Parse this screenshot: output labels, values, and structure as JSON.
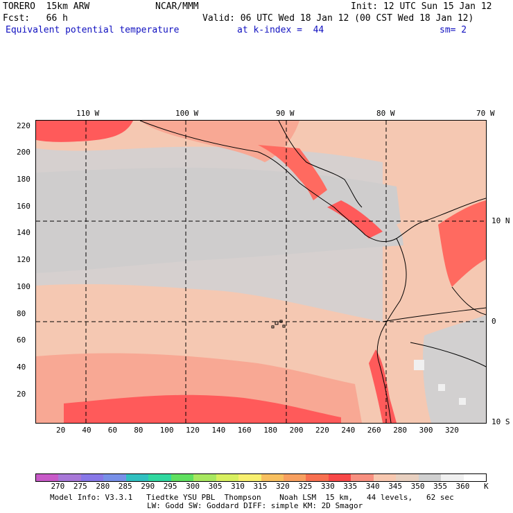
{
  "header": {
    "model": "TORERO  15km ARW",
    "org": "NCAR/MMM",
    "init": "Init: 12 UTC Sun 15 Jan 12",
    "fcst": "Fcst:   66 h",
    "valid": "Valid: 06 UTC Wed 18 Jan 12 (00 CST Wed 18 Jan 12)",
    "field": "Equivalent potential temperature",
    "level": "at k-index =  44",
    "smooth": "sm= 2"
  },
  "map": {
    "lon_labels": [
      "110 W",
      "100 W",
      "90 W",
      "80 W",
      "70 W"
    ],
    "lat_labels": [
      "10 N",
      "0",
      "10 S"
    ],
    "y_ticks": [
      "220",
      "200",
      "180",
      "160",
      "140",
      "120",
      "100",
      "80",
      "60",
      "40",
      "20"
    ],
    "x_ticks": [
      "20",
      "40",
      "60",
      "80",
      "100",
      "120",
      "140",
      "160",
      "180",
      "200",
      "220",
      "240",
      "260",
      "280",
      "300",
      "320"
    ],
    "colors": {
      "c330": "#ff5a5a",
      "c335": "#ff8a7a",
      "c340": "#f5c8b2",
      "c345": "#e8cfc0",
      "c350": "#d2d0d0",
      "c355": "#f0f0f0",
      "c325": "#f58a5a"
    }
  },
  "colorbar": {
    "labels": [
      "270",
      "275",
      "280",
      "285",
      "290",
      "295",
      "300",
      "305",
      "310",
      "315",
      "320",
      "325",
      "330",
      "335",
      "340",
      "345",
      "350",
      "355",
      "360"
    ],
    "unit": "K",
    "colors": [
      "#c85ac8",
      "#a878d8",
      "#8878e8",
      "#7890e8",
      "#30c0c0",
      "#30d8a0",
      "#60e060",
      "#a8e860",
      "#d8f060",
      "#f8f070",
      "#f8c060",
      "#f8a060",
      "#f87050",
      "#f84848",
      "#f89080",
      "#f8c8b0",
      "#e8d0c0",
      "#d0d0d0",
      "#f0f0f0",
      "#ffffff"
    ]
  },
  "footer": {
    "line1": "Model Info: V3.3.1   Tiedtke YSU PBL  Thompson    Noah LSM  15 km,   44 levels,   62 sec",
    "line2": "LW: Godd SW: Goddard DIFF: simple KM: 2D Smagor"
  }
}
